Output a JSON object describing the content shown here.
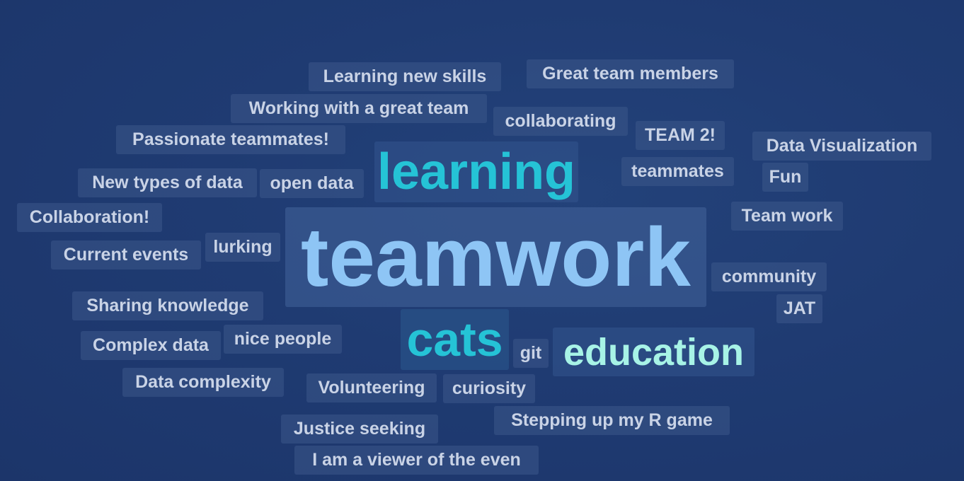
{
  "words": {
    "teamwork": "teamwork",
    "learning": "learning",
    "cats": "cats",
    "education": "education",
    "learning_new_skills": "Learning new skills",
    "great_team_members": "Great team members",
    "working_with_a_great_team": "Working with a great team",
    "collaborating": "collaborating",
    "passionate_teammates": "Passionate teammates!",
    "team_2": "TEAM 2!",
    "data_visualization": "Data Visualization",
    "new_types_of_data": "New types of data",
    "open_data": "open data",
    "teammates": "teammates",
    "fun": "Fun",
    "collaboration": "Collaboration!",
    "team_work": "Team work",
    "lurking": "lurking",
    "current_events": "Current events",
    "community": "community",
    "sharing_knowledge": "Sharing knowledge",
    "jat": "JAT",
    "complex_data": "Complex data",
    "nice_people": "nice people",
    "git": "git",
    "data_complexity": "Data complexity",
    "volunteering": "Volunteering",
    "curiosity": "curiosity",
    "stepping_up_my_r_game": "Stepping up my R game",
    "justice_seeking": "Justice seeking",
    "i_am_a_viewer_of_the_even": "I am a viewer of the even"
  },
  "colors": {
    "background": "#1f3b72",
    "small_word": "#c9d3e6",
    "teamwork": "#8ec5f5",
    "learning": "#25c3d6",
    "cats": "#25c3d6",
    "education": "#a7f3e6"
  }
}
